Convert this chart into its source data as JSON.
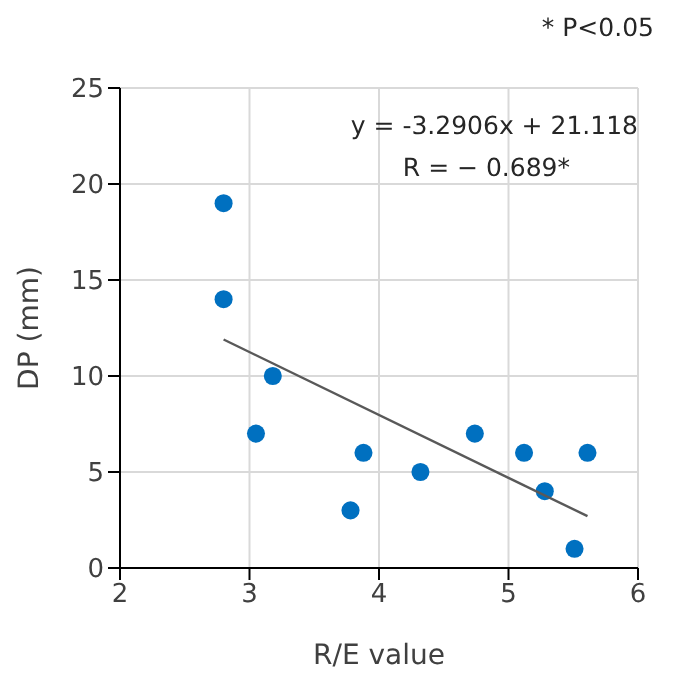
{
  "chart_data": {
    "type": "scatter",
    "xlabel": "R/E value",
    "ylabel": "DP (mm)",
    "annotations": [
      "* P<0.05",
      "y = -3.2906x + 21.118",
      "R = − 0.689*"
    ],
    "x": [
      2.8,
      2.8,
      3.18,
      3.05,
      3.78,
      3.88,
      4.32,
      4.74,
      5.12,
      5.28,
      5.51,
      5.61
    ],
    "series": [
      {
        "type": "scatter",
        "color": "#0070c0",
        "values": [
          19,
          14,
          10,
          7,
          3,
          6,
          5,
          7,
          6,
          4,
          1,
          6
        ],
        "marker": "circle"
      },
      {
        "type": "line",
        "color": "#595959",
        "x": [
          2.8,
          5.61
        ],
        "values": [
          11.9,
          2.7
        ]
      }
    ],
    "xlim": [
      2,
      6
    ],
    "xticks": [
      2,
      3,
      4,
      5,
      6
    ],
    "ylim": [
      0,
      25
    ],
    "yticks": [
      0,
      5,
      10,
      15,
      20,
      25
    ],
    "grid": true
  }
}
